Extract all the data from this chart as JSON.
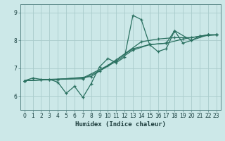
{
  "title": "",
  "xlabel": "Humidex (Indice chaleur)",
  "ylabel": "",
  "bg_color": "#cce8e8",
  "grid_color": "#aacccc",
  "line_color": "#2a7060",
  "xlim": [
    -0.5,
    23.5
  ],
  "ylim": [
    5.5,
    9.3
  ],
  "yticks": [
    6,
    7,
    8,
    9
  ],
  "xticks": [
    0,
    1,
    2,
    3,
    4,
    5,
    6,
    7,
    8,
    9,
    10,
    11,
    12,
    13,
    14,
    15,
    16,
    17,
    18,
    19,
    20,
    21,
    22,
    23
  ],
  "lines": [
    {
      "x": [
        0,
        1,
        2,
        3,
        4,
        5,
        6,
        7,
        8,
        9,
        10,
        11,
        12,
        13,
        14,
        15,
        16,
        17,
        18,
        19,
        20,
        21,
        22,
        23
      ],
      "y": [
        6.55,
        6.65,
        6.6,
        6.6,
        6.5,
        6.1,
        6.35,
        5.95,
        6.45,
        7.05,
        7.35,
        7.2,
        7.4,
        8.9,
        8.75,
        7.85,
        7.6,
        7.7,
        8.35,
        7.9,
        8.0,
        8.15,
        8.2,
        8.2
      ]
    },
    {
      "x": [
        0,
        2,
        4,
        7,
        9,
        11,
        13,
        15,
        17,
        19,
        21,
        23
      ],
      "y": [
        6.55,
        6.58,
        6.6,
        6.62,
        6.9,
        7.25,
        7.65,
        7.85,
        7.9,
        8.05,
        8.15,
        8.2
      ]
    },
    {
      "x": [
        0,
        3,
        7,
        10,
        13,
        15,
        17,
        18,
        20,
        22,
        23
      ],
      "y": [
        6.55,
        6.6,
        6.65,
        7.1,
        7.7,
        7.85,
        7.9,
        8.35,
        8.0,
        8.2,
        8.2
      ]
    },
    {
      "x": [
        0,
        4,
        8,
        11,
        14,
        16,
        18,
        20,
        22,
        23
      ],
      "y": [
        6.55,
        6.6,
        6.7,
        7.3,
        7.95,
        8.05,
        8.1,
        8.1,
        8.2,
        8.2
      ]
    }
  ]
}
